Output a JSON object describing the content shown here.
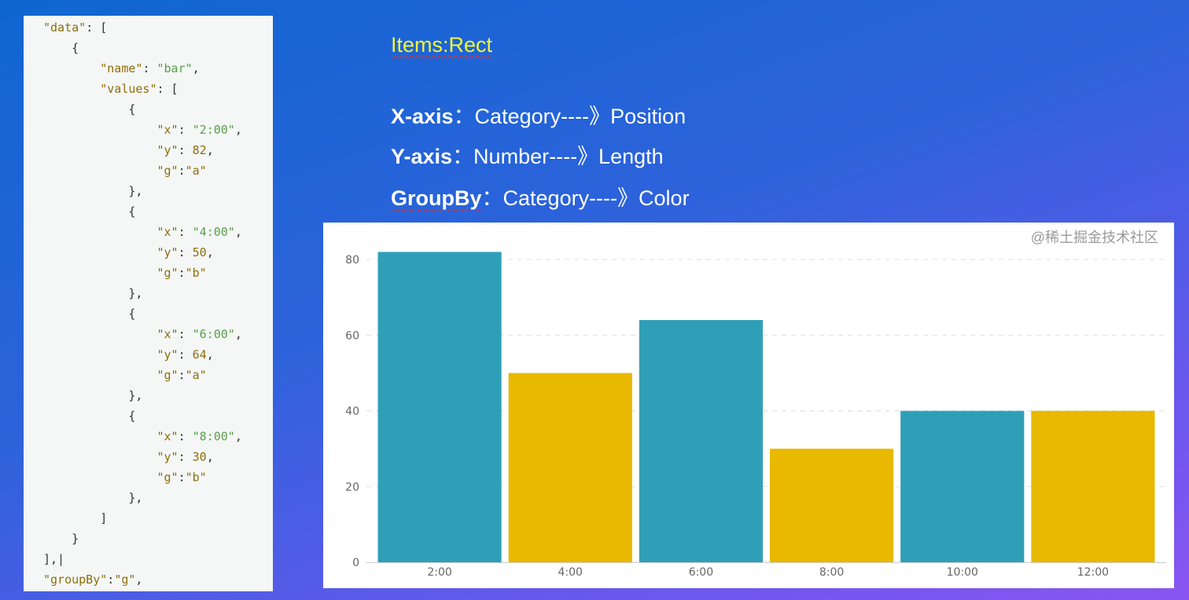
{
  "code_panel": {
    "lines": [
      {
        "indent": 0,
        "tokens": [
          [
            "k",
            "\"data\""
          ],
          [
            "p",
            ": ["
          ]
        ]
      },
      {
        "indent": 1,
        "tokens": [
          [
            "p",
            "{"
          ]
        ]
      },
      {
        "indent": 2,
        "tokens": [
          [
            "k",
            "\"name\""
          ],
          [
            "p",
            ": "
          ],
          [
            "s",
            "\"bar\""
          ],
          [
            "p",
            ","
          ]
        ]
      },
      {
        "indent": 2,
        "tokens": [
          [
            "k",
            "\"values\""
          ],
          [
            "p",
            ": ["
          ]
        ]
      },
      {
        "indent": 3,
        "tokens": [
          [
            "p",
            "{"
          ]
        ]
      },
      {
        "indent": 4,
        "tokens": [
          [
            "k",
            "\"x\""
          ],
          [
            "p",
            ": "
          ],
          [
            "s",
            "\"2:00\""
          ],
          [
            "p",
            ","
          ]
        ]
      },
      {
        "indent": 4,
        "tokens": [
          [
            "k",
            "\"y\""
          ],
          [
            "p",
            ": "
          ],
          [
            "n",
            "82"
          ],
          [
            "p",
            ","
          ]
        ]
      },
      {
        "indent": 4,
        "tokens": [
          [
            "k",
            "\"g\""
          ],
          [
            "p",
            ":"
          ],
          [
            "k",
            "\"a\""
          ]
        ]
      },
      {
        "indent": 3,
        "tokens": [
          [
            "p",
            "},"
          ]
        ]
      },
      {
        "indent": 3,
        "tokens": [
          [
            "p",
            "{"
          ]
        ]
      },
      {
        "indent": 4,
        "tokens": [
          [
            "k",
            "\"x\""
          ],
          [
            "p",
            ": "
          ],
          [
            "s",
            "\"4:00\""
          ],
          [
            "p",
            ","
          ]
        ]
      },
      {
        "indent": 4,
        "tokens": [
          [
            "k",
            "\"y\""
          ],
          [
            "p",
            ": "
          ],
          [
            "n",
            "50"
          ],
          [
            "p",
            ","
          ]
        ]
      },
      {
        "indent": 4,
        "tokens": [
          [
            "k",
            "\"g\""
          ],
          [
            "p",
            ":"
          ],
          [
            "k",
            "\"b\""
          ]
        ]
      },
      {
        "indent": 3,
        "tokens": [
          [
            "p",
            "},"
          ]
        ]
      },
      {
        "indent": 3,
        "tokens": [
          [
            "p",
            "{"
          ]
        ]
      },
      {
        "indent": 4,
        "tokens": [
          [
            "k",
            "\"x\""
          ],
          [
            "p",
            ": "
          ],
          [
            "s",
            "\"6:00\""
          ],
          [
            "p",
            ","
          ]
        ]
      },
      {
        "indent": 4,
        "tokens": [
          [
            "k",
            "\"y\""
          ],
          [
            "p",
            ": "
          ],
          [
            "n",
            "64"
          ],
          [
            "p",
            ","
          ]
        ]
      },
      {
        "indent": 4,
        "tokens": [
          [
            "k",
            "\"g\""
          ],
          [
            "p",
            ":"
          ],
          [
            "k",
            "\"a\""
          ]
        ]
      },
      {
        "indent": 3,
        "tokens": [
          [
            "p",
            "},"
          ]
        ]
      },
      {
        "indent": 3,
        "tokens": [
          [
            "p",
            "{"
          ]
        ]
      },
      {
        "indent": 4,
        "tokens": [
          [
            "k",
            "\"x\""
          ],
          [
            "p",
            ": "
          ],
          [
            "s",
            "\"8:00\""
          ],
          [
            "p",
            ","
          ]
        ]
      },
      {
        "indent": 4,
        "tokens": [
          [
            "k",
            "\"y\""
          ],
          [
            "p",
            ": "
          ],
          [
            "n",
            "30"
          ],
          [
            "p",
            ","
          ]
        ]
      },
      {
        "indent": 4,
        "tokens": [
          [
            "k",
            "\"g\""
          ],
          [
            "p",
            ":"
          ],
          [
            "k",
            "\"b\""
          ]
        ]
      },
      {
        "indent": 3,
        "tokens": [
          [
            "p",
            "},"
          ]
        ]
      },
      {
        "indent": 2,
        "tokens": [
          [
            "p",
            "]"
          ]
        ]
      },
      {
        "indent": 1,
        "tokens": [
          [
            "p",
            "}"
          ]
        ]
      },
      {
        "indent": 0,
        "tokens": [
          [
            "p",
            "],|"
          ]
        ]
      },
      {
        "indent": 0,
        "tokens": [
          [
            "k",
            "\"groupBy\""
          ],
          [
            "p",
            ":"
          ],
          [
            "k",
            "\"g\""
          ],
          [
            "p",
            ","
          ]
        ]
      }
    ]
  },
  "slide": {
    "title": "Items:Rect",
    "rows": [
      {
        "label": "X-axis",
        "text": "：Category----》Position"
      },
      {
        "label": "Y-axis",
        "text": "：Number----》Length"
      },
      {
        "label": "GroupBy",
        "text": "：Category----》Color"
      }
    ]
  },
  "watermark": "@稀土掘金技术社区",
  "chart_data": {
    "type": "bar",
    "categories": [
      "2:00",
      "4:00",
      "6:00",
      "8:00",
      "10:00",
      "12:00"
    ],
    "values": [
      82,
      50,
      64,
      30,
      40,
      40
    ],
    "groups": [
      "a",
      "b",
      "a",
      "b",
      "a",
      "b"
    ],
    "group_colors": {
      "a": "#2f9fb8",
      "b": "#e9b800"
    },
    "ylim": [
      0,
      80
    ],
    "yticks": [
      0,
      20,
      40,
      60,
      80
    ],
    "grid": true,
    "title": "",
    "xlabel": "",
    "ylabel": ""
  }
}
